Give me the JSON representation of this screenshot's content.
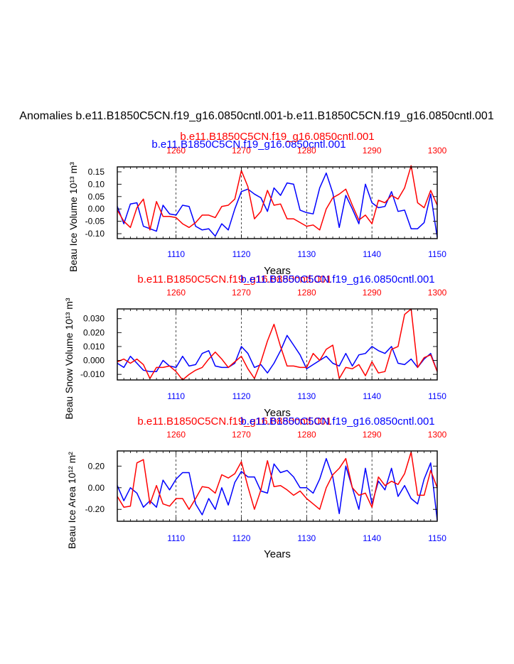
{
  "main_title": "Anomalies b.e11.B1850C5CN.f19_g16.0850cntl.001-b.e11.B1850C5CN.f19_g16.0850cntl.001",
  "colors": {
    "series_a": "#0000ff",
    "series_b": "#ff0000",
    "axis": "#000000"
  },
  "chart_data": [
    {
      "type": "line",
      "title_a": "b.e11.B1850C5CN.f19_g16.0850cntl.001",
      "title_b": "b.e11.B1850C5CN.f19_g16.0850cntl.001",
      "xlabel": "Years",
      "ylabel": "Beau Ice Volume 10¹³ m³",
      "x_bottom_range": [
        1101,
        1150
      ],
      "x_top_range": [
        1251,
        1300
      ],
      "x_bottom_ticks": [
        "1110",
        "1120",
        "1130",
        "1140",
        "1150"
      ],
      "x_top_ticks": [
        "1260",
        "1270",
        "1280",
        "1290",
        "1300"
      ],
      "ylim": [
        -0.12,
        0.17
      ],
      "y_ticks": [
        0.15,
        0.1,
        0.05,
        0.0,
        -0.05,
        -0.1
      ],
      "y_tick_labels": [
        "0.15",
        "0.10",
        "0.05",
        "0.00",
        "-0.05",
        "-0.10"
      ],
      "series": [
        {
          "name": "b.e11.B1850C5CN.f19_g16.0850cntl.001 (1101-1150)",
          "axis": "bottom",
          "color": "#0000ff",
          "values": [
            0.01,
            -0.06,
            0.02,
            0.025,
            -0.07,
            -0.08,
            -0.09,
            0.015,
            -0.02,
            -0.025,
            0.015,
            0.01,
            -0.07,
            -0.085,
            -0.08,
            -0.11,
            -0.06,
            -0.085,
            0.0,
            0.07,
            0.08,
            0.06,
            0.045,
            -0.01,
            0.085,
            0.055,
            0.105,
            0.1,
            -0.005,
            -0.015,
            -0.02,
            0.085,
            0.145,
            0.065,
            -0.075,
            0.055,
            0.0,
            -0.06,
            0.1,
            0.025,
            0.005,
            0.01,
            0.07,
            -0.01,
            -0.005,
            -0.08,
            -0.08,
            -0.055,
            0.06,
            -0.115
          ]
        },
        {
          "name": "b.e11.B1850C5CN.f19_g16.0850cntl.001 (1251-1300)",
          "axis": "top",
          "color": "#ff0000",
          "values": [
            -0.005,
            -0.05,
            -0.075,
            0.005,
            0.04,
            -0.085,
            0.03,
            -0.03,
            -0.03,
            -0.035,
            -0.06,
            -0.075,
            -0.055,
            -0.025,
            -0.025,
            -0.035,
            0.01,
            0.015,
            0.04,
            0.155,
            0.09,
            -0.04,
            -0.01,
            0.075,
            0.015,
            0.02,
            -0.04,
            -0.04,
            -0.055,
            -0.07,
            -0.065,
            -0.085,
            0.0,
            0.045,
            0.06,
            0.08,
            0.015,
            -0.045,
            -0.025,
            -0.06,
            0.035,
            0.025,
            0.055,
            0.04,
            0.085,
            0.175,
            0.025,
            0.005,
            0.075,
            0.015
          ]
        }
      ]
    },
    {
      "type": "line",
      "title_a": "b.e11.B1850C5CN.f19_g16.0850cntl.001",
      "title_b": "b.e11.B1850C5CN.f19_g16.0850cntl.001",
      "xlabel": "Years",
      "ylabel": "Beau Snow Volume 10¹³ m³",
      "x_bottom_range": [
        1101,
        1150
      ],
      "x_top_range": [
        1251,
        1300
      ],
      "x_bottom_ticks": [
        "1110",
        "1120",
        "1130",
        "1140",
        "1150"
      ],
      "x_top_ticks": [
        "1260",
        "1270",
        "1280",
        "1290",
        "1300"
      ],
      "ylim": [
        -0.014,
        0.037
      ],
      "y_ticks": [
        0.03,
        0.02,
        0.01,
        0.0,
        -0.01
      ],
      "y_tick_labels": [
        "0.030",
        "0.020",
        "0.010",
        "0.000",
        "-0.010"
      ],
      "series": [
        {
          "name": "b.e11.B1850C5CN.f19_g16.0850cntl.001 (1101-1150)",
          "axis": "bottom",
          "color": "#0000ff",
          "values": [
            -0.002,
            -0.005,
            0.003,
            -0.002,
            -0.007,
            -0.008,
            -0.008,
            0.0,
            -0.004,
            -0.005,
            0.003,
            -0.004,
            -0.003,
            0.005,
            0.007,
            -0.004,
            -0.005,
            -0.005,
            -0.002,
            0.01,
            0.005,
            -0.005,
            -0.003,
            -0.009,
            -0.002,
            0.007,
            0.018,
            0.011,
            0.004,
            -0.006,
            -0.003,
            0.0,
            0.003,
            -0.002,
            -0.004,
            0.005,
            -0.004,
            0.004,
            0.005,
            0.01,
            0.007,
            0.005,
            0.01,
            -0.002,
            -0.003,
            0.001,
            -0.005,
            0.001,
            0.005,
            -0.008
          ]
        },
        {
          "name": "b.e11.B1850C5CN.f19_g16.0850cntl.001 (1251-1300)",
          "axis": "top",
          "color": "#ff0000",
          "values": [
            -0.001,
            0.001,
            -0.002,
            0.001,
            -0.003,
            -0.013,
            -0.005,
            -0.005,
            -0.004,
            -0.008,
            -0.014,
            -0.01,
            -0.007,
            -0.005,
            0.001,
            0.006,
            0.001,
            -0.005,
            -0.001,
            0.003,
            -0.006,
            -0.013,
            -0.001,
            0.014,
            0.026,
            0.01,
            -0.004,
            -0.004,
            -0.005,
            -0.005,
            0.005,
            0.0,
            0.008,
            0.011,
            -0.013,
            -0.005,
            -0.006,
            -0.003,
            -0.011,
            -0.001,
            -0.009,
            -0.008,
            0.008,
            0.01,
            0.033,
            0.037,
            -0.005,
            0.002,
            0.004,
            -0.008
          ]
        }
      ]
    },
    {
      "type": "line",
      "title_a": "b.e11.B1850C5CN.f19_g16.0850cntl.001",
      "title_b": "b.e11.B1850C5CN.f19_g16.0850cntl.001",
      "xlabel": "Years",
      "ylabel": "Beau Ice Area 10¹² m²",
      "x_bottom_range": [
        1101,
        1150
      ],
      "x_top_range": [
        1251,
        1300
      ],
      "x_bottom_ticks": [
        "1110",
        "1120",
        "1130",
        "1140",
        "1150"
      ],
      "x_top_ticks": [
        "1260",
        "1270",
        "1280",
        "1290",
        "1300"
      ],
      "ylim": [
        -0.31,
        0.34
      ],
      "y_ticks": [
        0.2,
        0.0,
        -0.2
      ],
      "y_tick_labels": [
        "0.20",
        "0.00",
        "-0.20"
      ],
      "series": [
        {
          "name": "b.e11.B1850C5CN.f19_g16.0850cntl.001 (1101-1150)",
          "axis": "bottom",
          "color": "#0000ff",
          "values": [
            0.02,
            -0.12,
            0.0,
            -0.05,
            -0.18,
            -0.12,
            -0.18,
            0.07,
            -0.02,
            0.08,
            0.14,
            0.14,
            -0.15,
            -0.25,
            -0.1,
            -0.2,
            0.0,
            -0.16,
            0.05,
            0.15,
            0.1,
            0.1,
            -0.03,
            -0.05,
            0.22,
            0.14,
            0.16,
            0.1,
            0.0,
            0.0,
            -0.05,
            0.08,
            0.27,
            0.1,
            -0.24,
            0.2,
            0.0,
            -0.2,
            0.18,
            -0.15,
            0.06,
            -0.02,
            0.18,
            -0.08,
            0.02,
            -0.1,
            -0.15,
            0.08,
            0.23,
            -0.3
          ]
        },
        {
          "name": "b.e11.B1850C5CN.f19_g16.0850cntl.001 (1251-1300)",
          "axis": "top",
          "color": "#ff0000",
          "values": [
            -0.08,
            -0.18,
            -0.17,
            0.23,
            0.26,
            -0.15,
            0.02,
            -0.15,
            -0.17,
            -0.1,
            -0.1,
            -0.2,
            -0.1,
            0.01,
            0.0,
            -0.05,
            0.12,
            0.09,
            0.13,
            0.24,
            0.01,
            -0.2,
            -0.02,
            0.25,
            0.01,
            0.02,
            -0.02,
            -0.07,
            -0.03,
            -0.1,
            -0.15,
            -0.2,
            0.0,
            0.12,
            0.18,
            0.27,
            0.0,
            -0.07,
            -0.05,
            -0.18,
            0.1,
            0.02,
            0.06,
            0.03,
            0.13,
            0.33,
            -0.07,
            -0.07,
            0.16,
            0.0
          ]
        }
      ]
    }
  ]
}
